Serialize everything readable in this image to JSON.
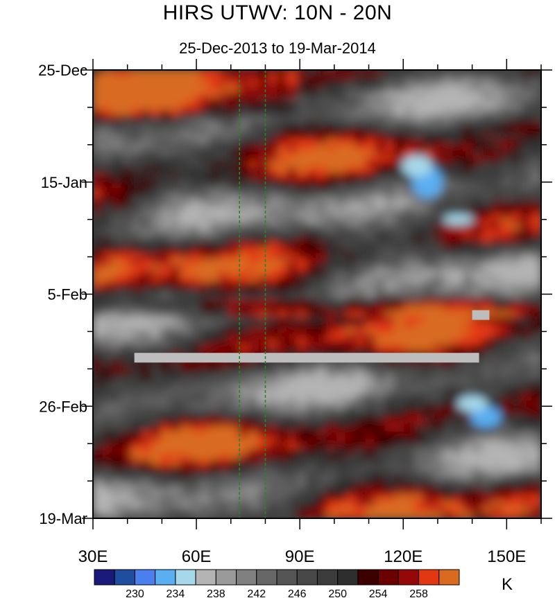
{
  "chart_data": {
    "type": "heatmap",
    "title": "HIRS UTWV: 10N - 20N",
    "subtitle": "25-Dec-2013 to 19-Mar-2014",
    "x_ticks": [
      {
        "value": 30,
        "label": "30E"
      },
      {
        "value": 60,
        "label": "60E"
      },
      {
        "value": 90,
        "label": "90E"
      },
      {
        "value": 120,
        "label": "120E"
      },
      {
        "value": 150,
        "label": "150E"
      }
    ],
    "x_range": [
      30,
      160
    ],
    "y_ticks": [
      {
        "value": "2013-12-25",
        "label": "25-Dec"
      },
      {
        "value": "2014-01-15",
        "label": "15-Jan"
      },
      {
        "value": "2014-02-05",
        "label": "5-Feb"
      },
      {
        "value": "2014-02-26",
        "label": "26-Feb"
      },
      {
        "value": "2014-03-19",
        "label": "19-Mar"
      }
    ],
    "y_range": [
      "2013-12-25",
      "2014-03-19"
    ],
    "reference_lines_x": [
      72.5,
      80
    ],
    "colorbar": {
      "unit": "K",
      "levels": [
        226,
        228,
        230,
        232,
        234,
        236,
        238,
        240,
        242,
        244,
        246,
        248,
        250,
        252,
        254,
        256,
        258,
        260
      ],
      "labeled_levels": [
        "230",
        "234",
        "238",
        "242",
        "246",
        "250",
        "254",
        "258"
      ],
      "colors": [
        "#1a1a7a",
        "#1f4ea0",
        "#4a7ff0",
        "#5aaef2",
        "#a6d8ea",
        "#b4b4b4",
        "#9a9a9a",
        "#808080",
        "#676767",
        "#555555",
        "#484848",
        "#3c3c3c",
        "#2e2e2e",
        "#3d0000",
        "#6b0000",
        "#960808",
        "#e33712",
        "#d96a20"
      ]
    },
    "missing_data": [
      {
        "x_range": [
          42,
          142
        ],
        "date_range": [
          "2014-02-16",
          "2014-02-17"
        ]
      },
      {
        "x_range": [
          140,
          145
        ],
        "date_range": [
          "2014-02-08",
          "2014-02-09"
        ]
      }
    ]
  }
}
